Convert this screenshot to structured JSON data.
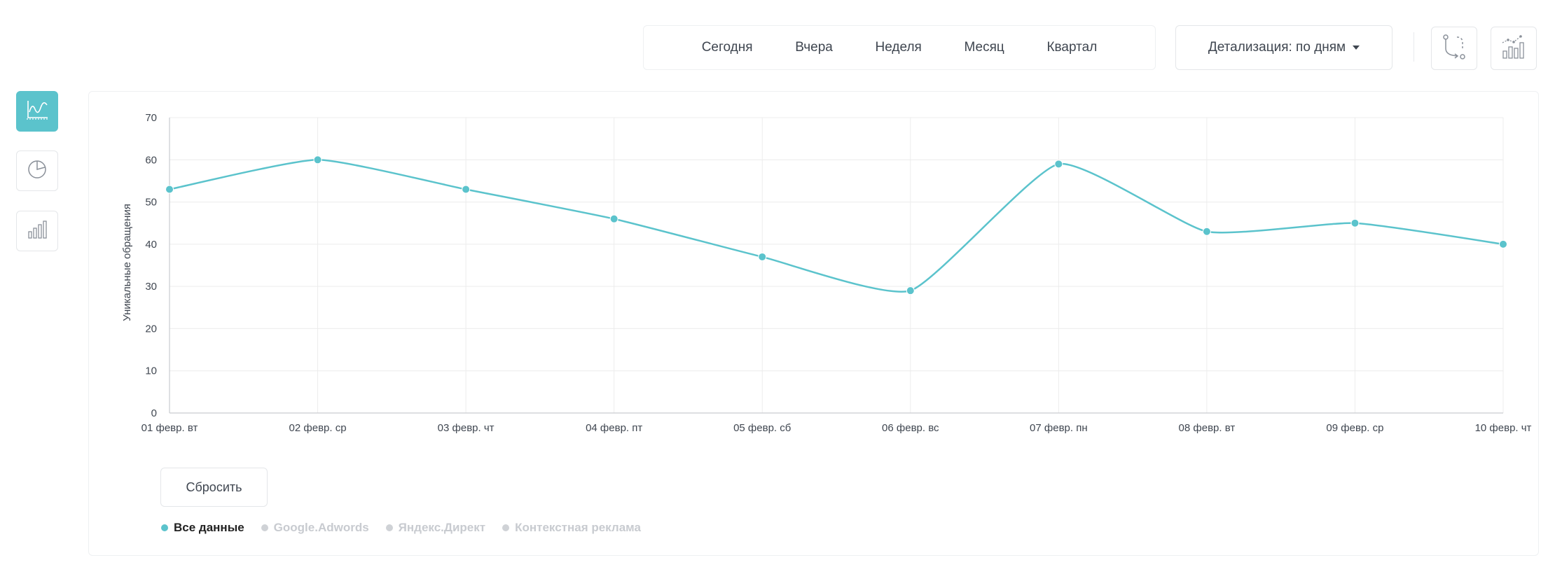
{
  "toolbar": {
    "periods": [
      "Сегодня",
      "Вчера",
      "Неделя",
      "Месяц",
      "Квартал"
    ],
    "detail_label": "Детализация: по дням"
  },
  "actions": {
    "reset_label": "Сбросить"
  },
  "legend": [
    {
      "label": "Все данные",
      "active": true,
      "color": "#5bc3cc"
    },
    {
      "label": "Google.Adwords",
      "active": false,
      "color": "#cfd2d6"
    },
    {
      "label": "Яндекс.Директ",
      "active": false,
      "color": "#cfd2d6"
    },
    {
      "label": "Контекстная реклама",
      "active": false,
      "color": "#cfd2d6"
    }
  ],
  "colors": {
    "accent": "#5bc3cc",
    "inactive": "#cfd2d6",
    "grid": "#ececec"
  },
  "side_icons": [
    "line-chart-icon",
    "pie-chart-icon",
    "bar-chart-icon"
  ],
  "top_icons": [
    "path-icon",
    "chart-trend-icon"
  ],
  "chart_data": {
    "type": "line",
    "ylabel": "Уникальные обращения",
    "xlabel": "",
    "ylim": [
      0,
      70
    ],
    "yticks": [
      0,
      10,
      20,
      30,
      40,
      50,
      60,
      70
    ],
    "categories": [
      "01 февр. вт",
      "02 февр. ср",
      "03 февр. чт",
      "04 февр. пт",
      "05 февр. сб",
      "06 февр. вс",
      "07 февр. пн",
      "08 февр. вт",
      "09 февр. ср",
      "10 февр. чт"
    ],
    "series": [
      {
        "name": "Все данные",
        "values": [
          53,
          60,
          53,
          46,
          37,
          29,
          59,
          43,
          45,
          40
        ]
      }
    ],
    "grid": true,
    "smooth": true
  }
}
